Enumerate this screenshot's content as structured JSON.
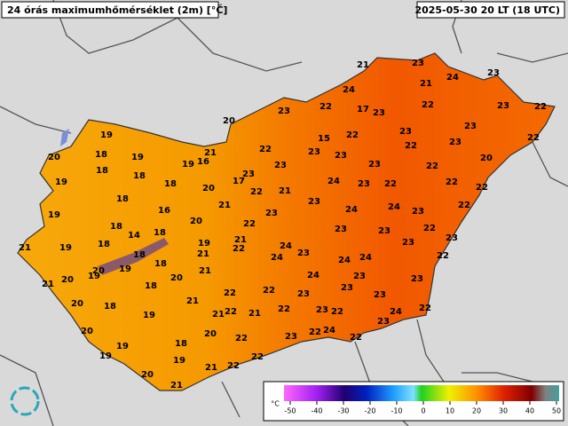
{
  "header": {
    "title": "24 órás maximumhőmérséklet (2m) [°C]",
    "timestamp": "2025-05-30 20 LT (18 UTC)"
  },
  "stations": [
    21,
    23,
    24,
    23,
    24,
    21,
    20,
    23,
    22,
    17,
    23,
    22,
    23,
    22,
    19,
    21,
    22,
    15,
    22,
    23,
    23,
    22,
    20,
    18,
    19,
    19,
    16,
    23,
    23,
    23,
    22,
    23,
    20,
    19,
    18,
    18,
    23,
    17,
    22,
    23,
    22,
    18,
    20,
    21,
    24,
    23,
    22,
    22,
    22,
    18,
    16,
    21,
    23,
    24,
    24,
    23,
    22,
    19,
    18,
    14,
    20,
    22,
    23,
    23,
    23,
    22,
    18,
    18,
    21,
    23,
    21,
    19,
    19,
    22,
    24,
    23,
    24,
    23,
    18,
    18,
    21,
    24,
    24,
    22,
    20,
    19,
    19,
    21,
    24,
    23,
    21,
    20,
    18,
    20,
    22,
    22,
    23,
    23,
    23,
    23,
    20,
    18,
    21,
    22,
    21,
    22,
    23,
    19,
    21,
    22,
    24,
    22,
    23,
    20,
    20,
    23,
    22,
    24,
    22,
    22,
    18,
    19,
    19,
    22,
    19,
    21,
    22,
    20,
    21
  ],
  "legend": {
    "unit": "°C",
    "ticks": [
      -50,
      -40,
      -30,
      -20,
      -10,
      0,
      10,
      20,
      30,
      40,
      50
    ]
  }
}
